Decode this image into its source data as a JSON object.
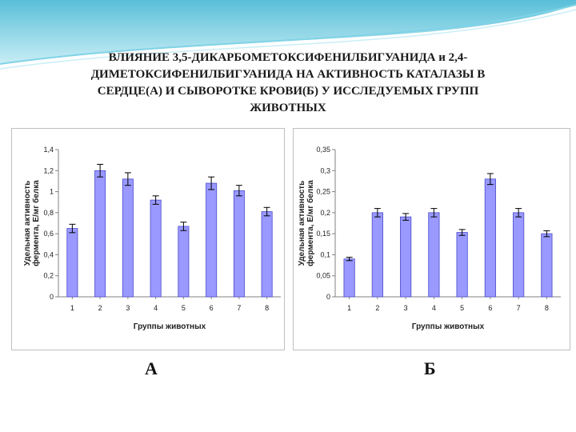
{
  "slide_title": "ВЛИЯНИЕ 3,5-ДИКАРБОМЕТОКСИФЕНИЛБИГУАНИДА и 2,4-\nДИМЕТОКСИФЕНИЛБИГУАНИДА НА АКТИВНОСТЬ КАТАЛАЗЫ В\nСЕРДЦЕ(А) И СЫВОРОТКЕ КРОВИ(Б) У ИССЛЕДУЕМЫХ ГРУПП\nЖИВОТНЫХ",
  "colors": {
    "bar_fill": "#9999ff",
    "bar_stroke": "#4a4acc",
    "wave": "#4fc3d9",
    "plot_bg": "#ffffff",
    "axis": "#808080"
  },
  "chart_data": [
    {
      "type": "bar",
      "panel_label": "А",
      "categories": [
        "1",
        "2",
        "3",
        "4",
        "5",
        "6",
        "7",
        "8"
      ],
      "values": [
        0.65,
        1.2,
        1.12,
        0.92,
        0.67,
        1.08,
        1.01,
        0.81
      ],
      "errors": [
        0.04,
        0.06,
        0.06,
        0.04,
        0.04,
        0.06,
        0.05,
        0.04
      ],
      "xlabel": "Группы животных",
      "ylabel_lines": [
        "Удельная активность",
        "фермента, Е/мг белка"
      ],
      "ylim": [
        0,
        1.4
      ],
      "yticks": [
        "0",
        "0,2",
        "0,4",
        "0,6",
        "0,8",
        "1",
        "1,2",
        "1,4"
      ],
      "grid": false
    },
    {
      "type": "bar",
      "panel_label": "Б",
      "categories": [
        "1",
        "2",
        "3",
        "4",
        "5",
        "6",
        "7",
        "8"
      ],
      "values": [
        0.09,
        0.2,
        0.19,
        0.2,
        0.153,
        0.28,
        0.2,
        0.15
      ],
      "errors": [
        0.004,
        0.01,
        0.008,
        0.01,
        0.007,
        0.013,
        0.01,
        0.007
      ],
      "xlabel": "Группы животных",
      "ylabel_lines": [
        "Удельная активность",
        "фермента, Е/мг белка"
      ],
      "ylim": [
        0,
        0.35
      ],
      "yticks": [
        "0",
        "0,05",
        "0,1",
        "0,15",
        "0,2",
        "0,25",
        "0,3",
        "0,35"
      ],
      "grid": false
    }
  ]
}
